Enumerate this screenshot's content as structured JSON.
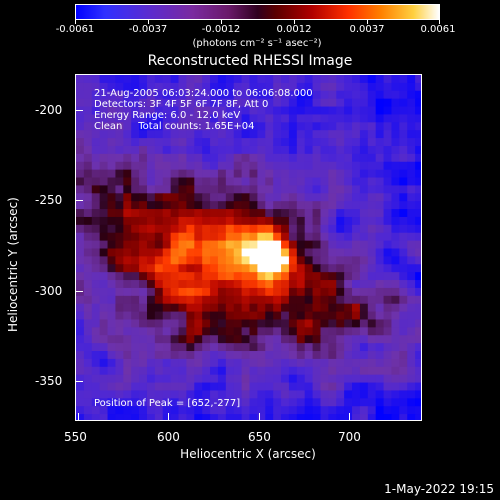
{
  "colorbar": {
    "ticks": [
      "-0.0061",
      "-0.0037",
      "-0.0012",
      "0.0012",
      "0.0037",
      "0.0061"
    ],
    "units": "(photons cm⁻² s⁻¹ asec⁻²)"
  },
  "title": "Reconstructed RHESSI Image",
  "info": {
    "line1": "21-Aug-2005 06:03:24.000 to 06:06:08.000",
    "line2": "Detectors: 3F 4F 5F 6F 7F 8F, Att 0",
    "line3": "Energy Range: 6.0 - 12.0 keV",
    "line4": "Clean     Total counts: 1.65E+04",
    "peak": "Position of Peak = [652,-277]"
  },
  "axes": {
    "xlabel": "Heliocentric X (arcsec)",
    "ylabel": "Heliocentric Y (arcsec)",
    "xticks": [
      "550",
      "600",
      "650",
      "700"
    ],
    "yticks": [
      "-200",
      "-250",
      "-300",
      "-350"
    ]
  },
  "timestamp": "1-May-2022 19:15",
  "chart_data": {
    "type": "heatmap",
    "title": "Reconstructed RHESSI Image",
    "xlabel": "Heliocentric X (arcsec)",
    "ylabel": "Heliocentric Y (arcsec)",
    "xlim": [
      548,
      740
    ],
    "ylim": [
      -372,
      -180
    ],
    "zlim": [
      -0.0061,
      0.0061
    ],
    "peak": [
      652,
      -277
    ]
  }
}
